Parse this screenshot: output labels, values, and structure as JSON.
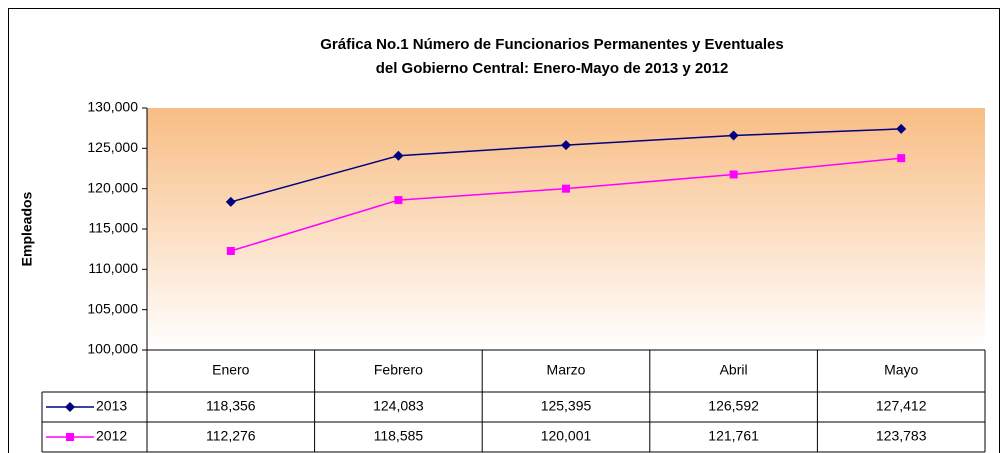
{
  "chart_data": {
    "type": "line",
    "title": [
      "Gráfica No.1 Número de Funcionarios Permanentes y Eventuales",
      "del Gobierno Central: Enero-Mayo de 2013 y 2012"
    ],
    "ylabel": "Empleados",
    "categories": [
      "Enero",
      "Febrero",
      "Marzo",
      "Abril",
      "Mayo"
    ],
    "series": [
      {
        "name": "2013",
        "color": "#000080",
        "marker": "diamond",
        "values": [
          118356,
          124083,
          125395,
          126592,
          127412
        ],
        "value_labels": [
          "118,356",
          "124,083",
          "125,395",
          "126,592",
          "127,412"
        ]
      },
      {
        "name": "2012",
        "color": "#ff00ff",
        "marker": "square",
        "values": [
          112276,
          118585,
          120001,
          121761,
          123783
        ],
        "value_labels": [
          "112,276",
          "118,585",
          "120,001",
          "121,761",
          "123,783"
        ]
      }
    ],
    "ylim": [
      100000,
      130000
    ],
    "yticks": [
      {
        "value": 100000,
        "label": "100,000"
      },
      {
        "value": 105000,
        "label": "105,000"
      },
      {
        "value": 110000,
        "label": "110,000"
      },
      {
        "value": 115000,
        "label": "115,000"
      },
      {
        "value": 120000,
        "label": "120,000"
      },
      {
        "value": 125000,
        "label": "125,000"
      },
      {
        "value": 130000,
        "label": "130,000"
      }
    ],
    "grid": false
  }
}
